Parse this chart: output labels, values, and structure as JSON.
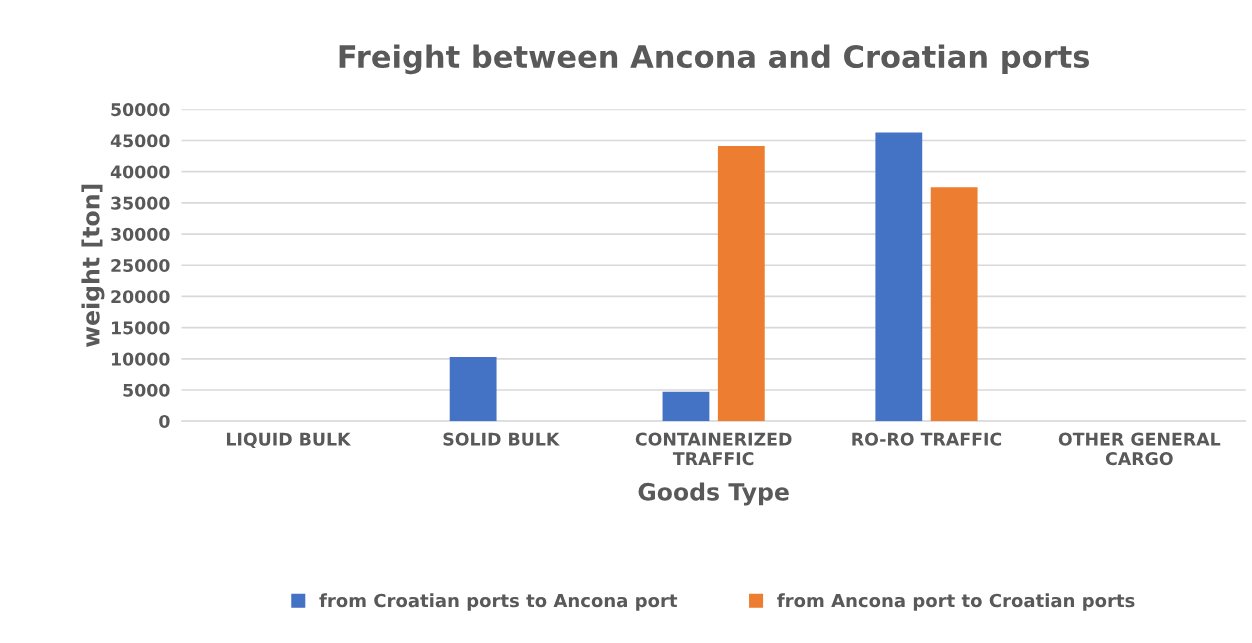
{
  "chart_data": {
    "type": "bar",
    "title": "Freight between Ancona and Croatian ports",
    "xlabel": "Goods Type",
    "ylabel": "weight [ton]",
    "categories": [
      "LIQUID BULK",
      "SOLID BULK",
      "CONTAINERIZED\nTRAFFIC",
      "RO-RO TRAFFIC",
      "OTHER GENERAL\nCARGO"
    ],
    "series": [
      {
        "name": "from Croatian ports to Ancona port",
        "color": "#4472c4",
        "values": [
          0,
          10300,
          4700,
          46300,
          0
        ]
      },
      {
        "name": "from Ancona port to Croatian ports",
        "color": "#ed7d31",
        "values": [
          0,
          0,
          44100,
          37500,
          0
        ]
      }
    ],
    "ylim": [
      0,
      50000
    ],
    "yticks": [
      0,
      5000,
      10000,
      15000,
      20000,
      25000,
      30000,
      35000,
      40000,
      45000,
      50000
    ],
    "grid": "y",
    "legend": "bottom"
  }
}
